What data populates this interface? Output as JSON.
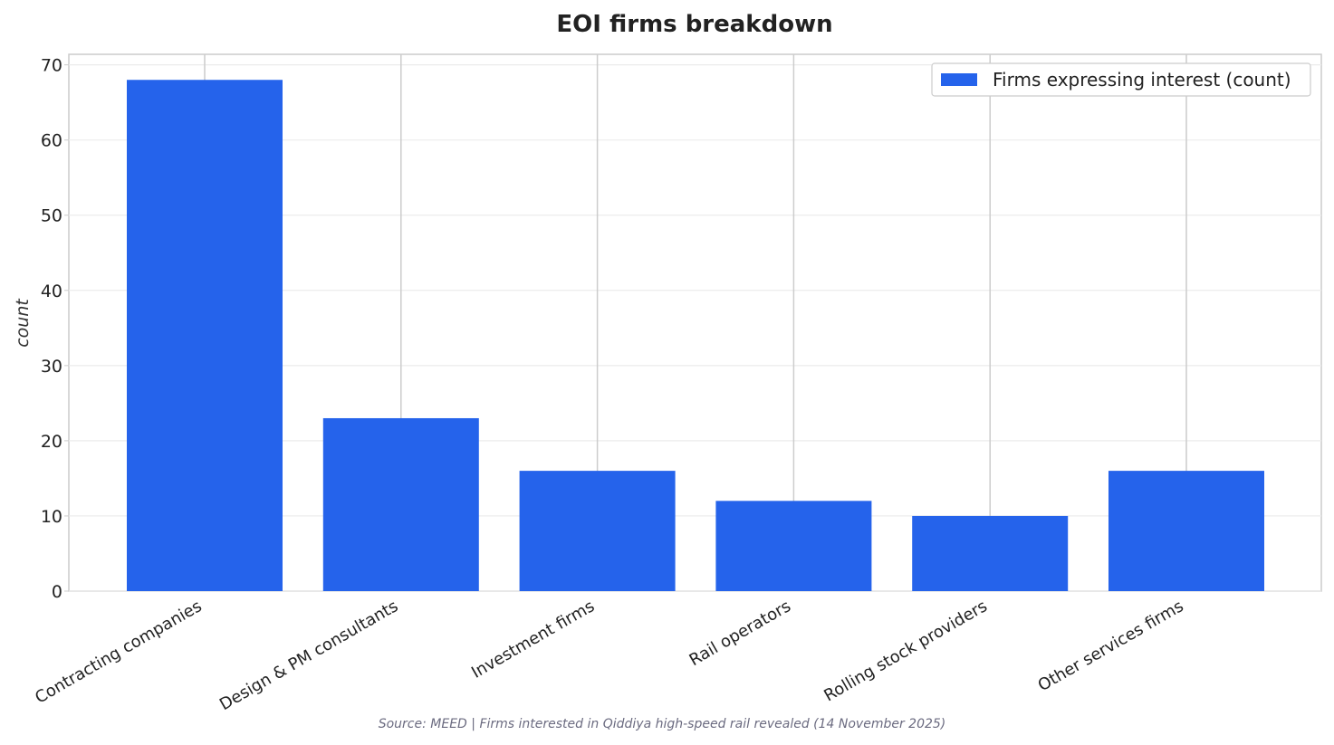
{
  "chart_data": {
    "type": "bar",
    "title": "EOI firms breakdown",
    "xlabel": "",
    "ylabel": "count",
    "categories": [
      "Contracting companies",
      "Design & PM consultants",
      "Investment firms",
      "Rail operators",
      "Rolling stock providers",
      "Other services firms"
    ],
    "series": [
      {
        "name": "Firms expressing interest (count)",
        "values": [
          68,
          23,
          16,
          12,
          10,
          16
        ]
      }
    ],
    "ylim": [
      0,
      71.4
    ],
    "yticks": [
      0,
      10,
      20,
      30,
      40,
      50,
      60,
      70
    ],
    "grid": true,
    "legend_position": "top-right",
    "bar_color": "#2563eb",
    "source_note": "Source: MEED | Firms interested in Qiddiya high-speed rail revealed (14 November 2025)"
  }
}
